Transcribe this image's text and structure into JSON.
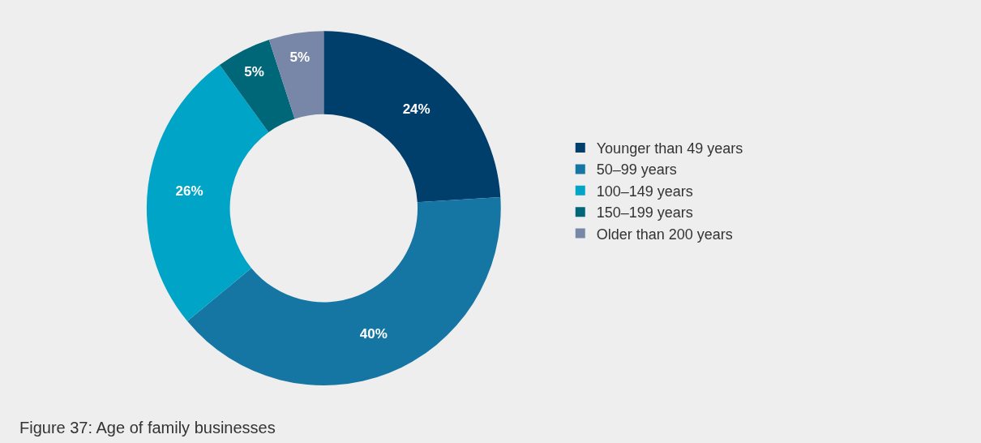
{
  "chart_data": {
    "type": "donut",
    "categories": [
      "Younger than 49 years",
      "50–99 years",
      "100–149 years",
      "150–199 years",
      "Older than 200 years"
    ],
    "values": [
      24,
      40,
      26,
      5,
      5
    ],
    "value_labels": [
      "24%",
      "40%",
      "26%",
      "5%",
      "5%"
    ],
    "colors": [
      "#003f6c",
      "#1575a3",
      "#00a4c7",
      "#006778",
      "#7887a8"
    ],
    "legend": "right",
    "annotations": [
      "Figure 37: Age of family businesses"
    ]
  }
}
